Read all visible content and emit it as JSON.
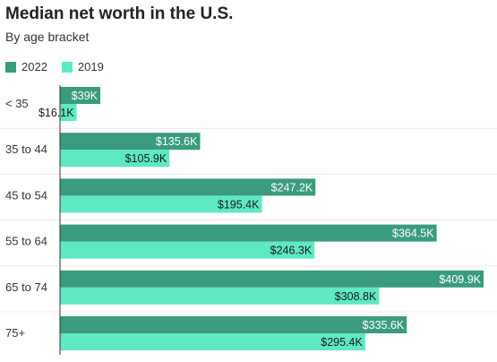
{
  "chart_data": {
    "type": "bar",
    "orientation": "horizontal",
    "title": "Median net worth in the U.S.",
    "subtitle": "By age bracket",
    "categories": [
      "< 35",
      "35 to 44",
      "45 to 54",
      "55 to 64",
      "65 to 74",
      "75+"
    ],
    "series": [
      {
        "name": "2022",
        "color": "#3a9b7e",
        "values": [
          39,
          135.6,
          247.2,
          364.5,
          409.9,
          335.6
        ],
        "labels": [
          "$39K",
          "$135.6K",
          "$247.2K",
          "$364.5K",
          "$409.9K",
          "$335.6K"
        ]
      },
      {
        "name": "2019",
        "color": "#5ee8c4",
        "values": [
          16.1,
          105.9,
          195.4,
          246.3,
          308.8,
          295.4
        ],
        "labels": [
          "$16.1K",
          "$105.9K",
          "$195.4K",
          "$246.3K",
          "$308.8K",
          "$295.4K"
        ]
      }
    ],
    "xlim": [
      0,
      409.9
    ],
    "grid": true,
    "legend_position": "top-left"
  }
}
